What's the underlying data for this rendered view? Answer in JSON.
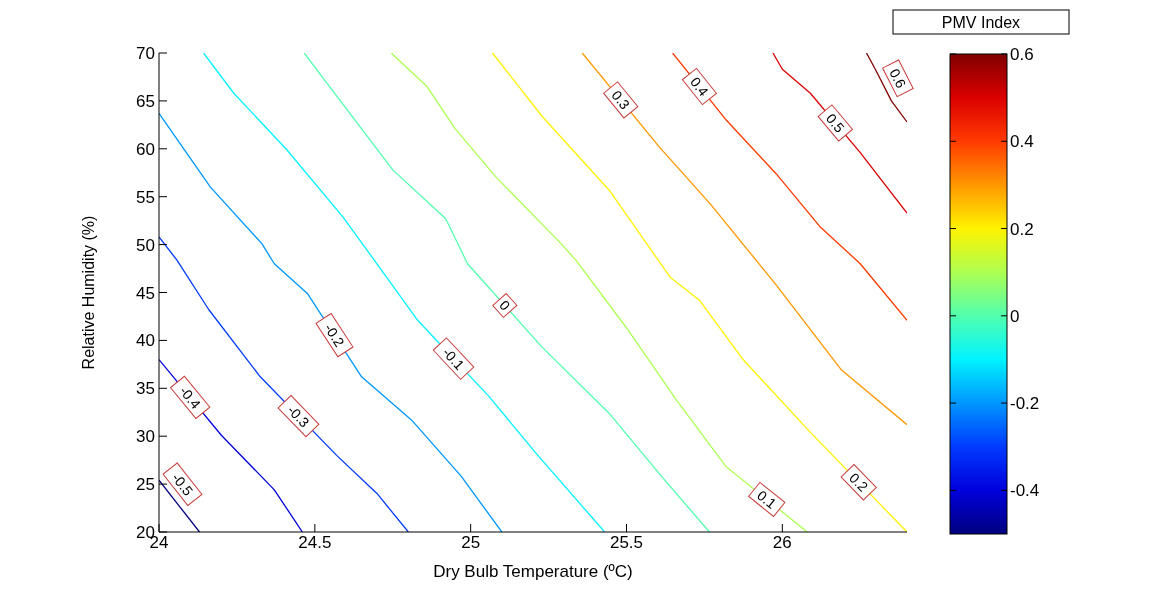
{
  "chart_data": {
    "type": "line",
    "xlabel": "Dry Bulb Temperature (ºC)",
    "ylabel": "Relative Humidity (%)",
    "clabel": "PMV Index",
    "xlim": [
      24,
      26.4
    ],
    "xticks": [
      24,
      24.5,
      25,
      25.5,
      26
    ],
    "ylim": [
      20,
      70
    ],
    "yticks": [
      20,
      25,
      30,
      35,
      40,
      45,
      50,
      55,
      60,
      65,
      70
    ],
    "clim": [
      -0.5,
      0.6
    ],
    "cticks": [
      -0.4,
      -0.2,
      0,
      0.2,
      0.4,
      0.6
    ],
    "grid": false,
    "legend": false,
    "marker": "none",
    "line_style": "solid",
    "series": [
      {
        "name": "-0.5",
        "color": "#00007f",
        "x": [
          24,
          24.07,
          24.13
        ],
        "values": [
          25.4,
          22.5,
          20
        ]
      },
      {
        "name": "-0.4",
        "color": "#0000dc",
        "x": [
          24,
          24.2,
          24.37,
          24.46
        ],
        "values": [
          38,
          30.1,
          24.4,
          20
        ]
      },
      {
        "name": "-0.3",
        "color": "#003aff",
        "x": [
          24,
          24.057,
          24.16,
          24.325,
          24.57,
          24.7,
          24.8
        ],
        "values": [
          50.8,
          48.4,
          43.2,
          36.2,
          28,
          24,
          20
        ]
      },
      {
        "name": "-0.2",
        "color": "#0097ff",
        "x": [
          24,
          24.165,
          24.33,
          24.37,
          24.476,
          24.65,
          24.81,
          24.97,
          25.1
        ],
        "values": [
          63.7,
          56,
          50.1,
          48,
          44.9,
          36.2,
          31.7,
          25.8,
          20
        ]
      },
      {
        "name": "-0.1",
        "color": "#00f3ff",
        "x": [
          24.143,
          24.24,
          24.41,
          24.59,
          24.73,
          24.83,
          25.06,
          25.21,
          25.43
        ],
        "values": [
          70,
          65.8,
          59.9,
          52.9,
          46.6,
          42.1,
          34.1,
          28.2,
          20
        ]
      },
      {
        "name": "0",
        "color": "#51ffae",
        "x": [
          24.466,
          24.54,
          24.75,
          24.92,
          24.99,
          25.229,
          25.444,
          25.605,
          25.766
        ],
        "values": [
          70,
          66.8,
          57.8,
          52.7,
          48,
          39.3,
          32.4,
          26.1,
          20
        ]
      },
      {
        "name": "0.1",
        "color": "#adff51",
        "x": [
          24.745,
          24.86,
          24.95,
          25.08,
          25.29,
          25.337,
          25.498,
          25.66,
          25.82,
          26.08
        ],
        "values": [
          70,
          66.5,
          62.1,
          57.1,
          50.1,
          48.4,
          41.4,
          33.8,
          26.8,
          20
        ]
      },
      {
        "name": "0.2",
        "color": "#fff300",
        "x": [
          25.07,
          25.229,
          25.444,
          25.64,
          25.734,
          25.874,
          26.09,
          26.4
        ],
        "values": [
          70,
          63.4,
          55.7,
          46.6,
          44.2,
          38,
          30.4,
          20
        ]
      },
      {
        "name": "0.3",
        "color": "#ff9700",
        "x": [
          25.358,
          25.605,
          25.77,
          25.98,
          26.19,
          26.4
        ],
        "values": [
          70,
          60.2,
          54.2,
          45.8,
          36.9,
          31.2
        ]
      },
      {
        "name": "0.4",
        "color": "#ff3a00",
        "x": [
          25.648,
          25.82,
          25.98,
          26.12,
          26.25,
          26.4
        ],
        "values": [
          70,
          63,
          57.4,
          51.9,
          48,
          42.1
        ]
      },
      {
        "name": "0.5",
        "color": "#db0000",
        "x": [
          25.97,
          26,
          26.09,
          26.25,
          26.4
        ],
        "values": [
          70,
          68.3,
          65.8,
          59.6,
          53.3
        ]
      },
      {
        "name": "0.6",
        "color": "#800000",
        "x": [
          26.27,
          26.3,
          26.35,
          26.4
        ],
        "values": [
          70,
          68.2,
          65,
          62.8
        ]
      }
    ]
  }
}
